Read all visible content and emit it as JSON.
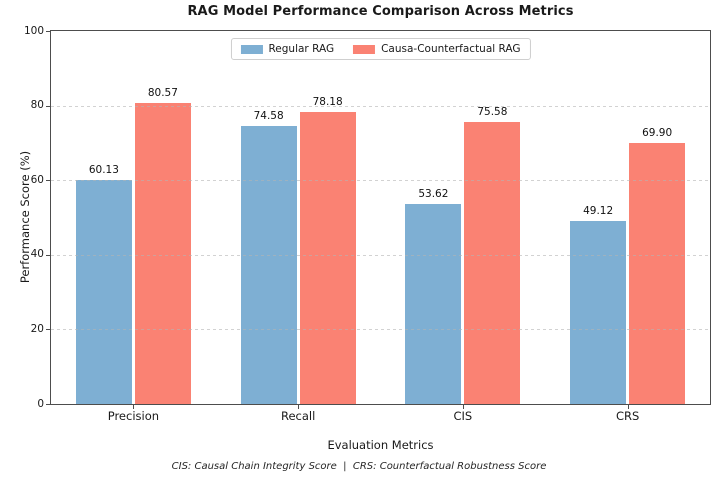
{
  "chart_data": {
    "type": "bar",
    "title": "RAG Model Performance Comparison Across Metrics",
    "xlabel": "Evaluation Metrics",
    "ylabel": "Performance Score (%)",
    "categories": [
      "Precision",
      "Recall",
      "CIS",
      "CRS"
    ],
    "series": [
      {
        "name": "Regular RAG",
        "color": "#7EAFD3",
        "values": [
          60.13,
          74.58,
          53.62,
          49.12
        ],
        "value_labels": [
          "60.13",
          "74.58",
          "53.62",
          "49.12"
        ]
      },
      {
        "name": "Causa-Counterfactual RAG",
        "color": "#FA8273",
        "values": [
          80.57,
          78.18,
          75.58,
          69.9
        ],
        "value_labels": [
          "80.57",
          "78.18",
          "75.58",
          "69.90"
        ]
      }
    ],
    "ylim": [
      0,
      100
    ],
    "yticks": [
      0,
      20,
      40,
      60,
      80,
      100
    ],
    "ytick_labels": [
      "0",
      "20",
      "40",
      "60",
      "80",
      "100"
    ],
    "grid": {
      "axis": "y",
      "style": "dashed",
      "color": "#b4b4b4",
      "over_bars": true
    },
    "legend": {
      "position": "upper-center-inside",
      "labels": [
        "Regular RAG",
        "Causa-Counterfactual RAG"
      ]
    },
    "footnote": "CIS: Causal Chain Integrity Score  |  CRS: Counterfactual Robustness Score"
  },
  "colors": {
    "background": "#ffffff",
    "spine": "#4d4d4d",
    "text": "#1a1a1a",
    "legend_border": "#cfcfcf",
    "bar_blue": "#7EAFD3",
    "bar_red": "#FA8273"
  }
}
